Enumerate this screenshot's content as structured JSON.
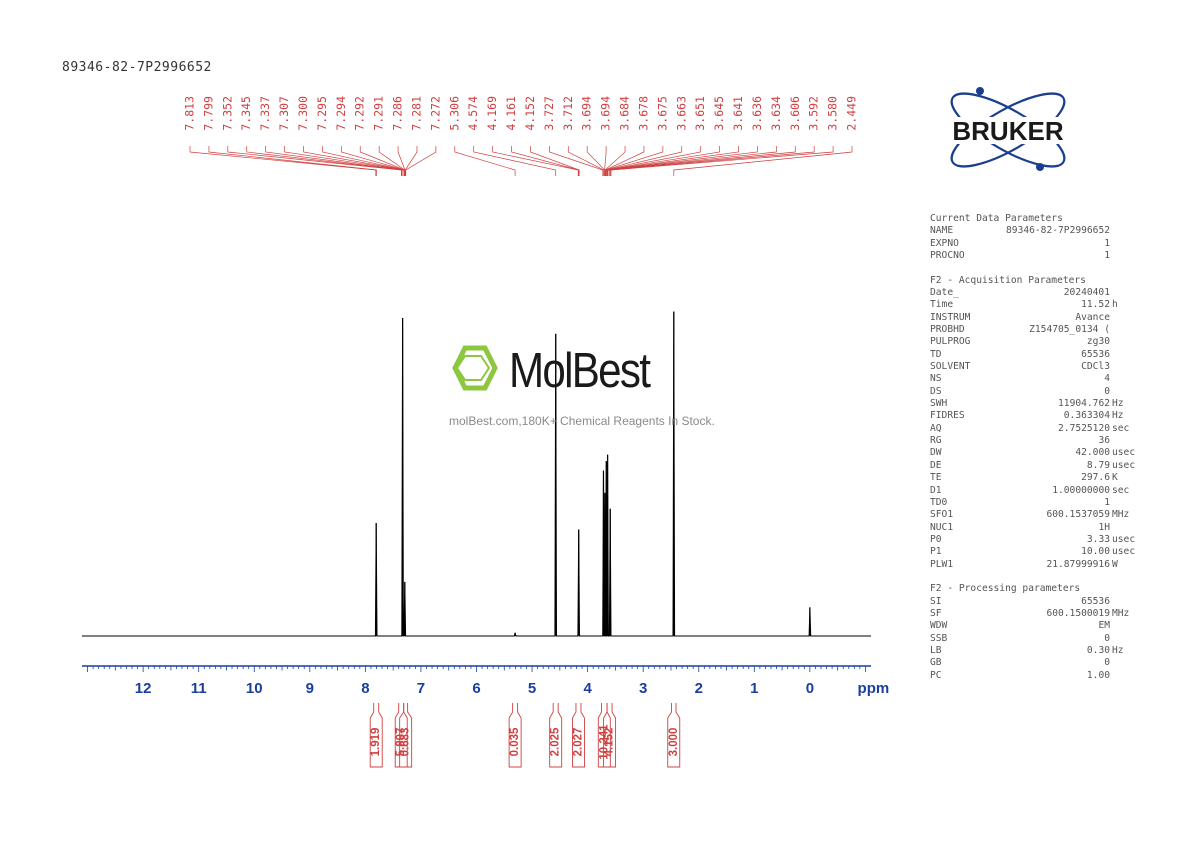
{
  "sample_id": "89346-82-7P2996652",
  "brand": {
    "name": "BRUKER"
  },
  "watermark": {
    "logo_text": "MolBest",
    "tagline": "molBest.com,180K+ Chemical Reagents In Stock."
  },
  "colors": {
    "spectrum": "#000000",
    "axis": "#1a3fa0",
    "peak_labels": "#d04040",
    "integrals": "#d04040"
  },
  "chart_data": {
    "type": "line",
    "xlabel": "ppm",
    "xlim": [
      13.1,
      -1.1
    ],
    "x_reversed": true,
    "x_ticks": [
      12,
      11,
      10,
      9,
      8,
      7,
      6,
      5,
      4,
      3,
      2,
      1,
      0
    ],
    "grid": false,
    "peak_labels": [
      "7.813",
      "7.799",
      "7.352",
      "7.345",
      "7.337",
      "7.307",
      "7.300",
      "7.295",
      "7.294",
      "7.292",
      "7.291",
      "7.286",
      "7.281",
      "7.272",
      "5.306",
      "4.574",
      "4.169",
      "4.161",
      "4.152",
      "3.727",
      "3.712",
      "3.694",
      "3.694",
      "3.684",
      "3.678",
      "3.675",
      "3.663",
      "3.651",
      "3.645",
      "3.641",
      "3.636",
      "3.634",
      "3.606",
      "3.592",
      "3.580",
      "2.449"
    ],
    "peaks": [
      {
        "ppm": 7.806,
        "height": 0.355
      },
      {
        "ppm": 7.33,
        "height": 1.0
      },
      {
        "ppm": 7.29,
        "height": 0.17
      },
      {
        "ppm": 5.306,
        "height": 0.01
      },
      {
        "ppm": 4.574,
        "height": 0.95
      },
      {
        "ppm": 4.161,
        "height": 0.335
      },
      {
        "ppm": 3.715,
        "height": 0.52
      },
      {
        "ppm": 3.69,
        "height": 0.45
      },
      {
        "ppm": 3.664,
        "height": 0.55
      },
      {
        "ppm": 3.641,
        "height": 0.57
      },
      {
        "ppm": 3.593,
        "height": 0.4
      },
      {
        "ppm": 2.449,
        "height": 1.02
      },
      {
        "ppm": 0.0,
        "height": 0.09
      }
    ],
    "integrals": [
      {
        "value": "1.919",
        "from": 7.85,
        "to": 7.76
      },
      {
        "value": "5.807",
        "from": 7.4,
        "to": 7.31
      },
      {
        "value": "0.683",
        "from": 7.31,
        "to": 7.24
      },
      {
        "value": "0.035",
        "from": 5.35,
        "to": 5.26
      },
      {
        "value": "2.025",
        "from": 4.62,
        "to": 4.53
      },
      {
        "value": "2.027",
        "from": 4.21,
        "to": 4.12
      },
      {
        "value": "10.241",
        "from": 3.75,
        "to": 3.65
      },
      {
        "value": "4.152",
        "from": 3.65,
        "to": 3.56
      },
      {
        "value": "3.000",
        "from": 2.49,
        "to": 2.41
      }
    ]
  },
  "parameters": {
    "current": {
      "heading": "Current Data Parameters",
      "rows": [
        {
          "k": "NAME",
          "v": "89346-82-7P2996652",
          "u": ""
        },
        {
          "k": "EXPNO",
          "v": "1",
          "u": ""
        },
        {
          "k": "PROCNO",
          "v": "1",
          "u": ""
        }
      ]
    },
    "acquisition": {
      "heading": "F2 - Acquisition Parameters",
      "rows": [
        {
          "k": "Date_",
          "v": "20240401",
          "u": ""
        },
        {
          "k": "Time",
          "v": "11.52",
          "u": "h"
        },
        {
          "k": "INSTRUM",
          "v": "Avance",
          "u": ""
        },
        {
          "k": "PROBHD",
          "v": "Z154705_0134 (",
          "u": ""
        },
        {
          "k": "PULPROG",
          "v": "zg30",
          "u": ""
        },
        {
          "k": "TD",
          "v": "65536",
          "u": ""
        },
        {
          "k": "SOLVENT",
          "v": "CDCl3",
          "u": ""
        },
        {
          "k": "NS",
          "v": "4",
          "u": ""
        },
        {
          "k": "DS",
          "v": "0",
          "u": ""
        },
        {
          "k": "SWH",
          "v": "11904.762",
          "u": "Hz"
        },
        {
          "k": "FIDRES",
          "v": "0.363304",
          "u": "Hz"
        },
        {
          "k": "AQ",
          "v": "2.7525120",
          "u": "sec"
        },
        {
          "k": "RG",
          "v": "36",
          "u": ""
        },
        {
          "k": "DW",
          "v": "42.000",
          "u": "usec"
        },
        {
          "k": "DE",
          "v": "8.79",
          "u": "usec"
        },
        {
          "k": "TE",
          "v": "297.6",
          "u": "K"
        },
        {
          "k": "D1",
          "v": "1.00000000",
          "u": "sec"
        },
        {
          "k": "TD0",
          "v": "1",
          "u": ""
        },
        {
          "k": "SFO1",
          "v": "600.1537059",
          "u": "MHz"
        },
        {
          "k": "NUC1",
          "v": "1H",
          "u": ""
        },
        {
          "k": "P0",
          "v": "3.33",
          "u": "usec"
        },
        {
          "k": "P1",
          "v": "10.00",
          "u": "usec"
        },
        {
          "k": "PLW1",
          "v": "21.87999916",
          "u": "W"
        }
      ]
    },
    "processing": {
      "heading": "F2 - Processing parameters",
      "rows": [
        {
          "k": "SI",
          "v": "65536",
          "u": ""
        },
        {
          "k": "SF",
          "v": "600.1500019",
          "u": "MHz"
        },
        {
          "k": "WDW",
          "v": "EM",
          "u": ""
        },
        {
          "k": "SSB",
          "v": "0",
          "u": ""
        },
        {
          "k": "LB",
          "v": "0.30",
          "u": "Hz"
        },
        {
          "k": "GB",
          "v": "0",
          "u": ""
        },
        {
          "k": "PC",
          "v": "1.00",
          "u": ""
        }
      ]
    }
  }
}
